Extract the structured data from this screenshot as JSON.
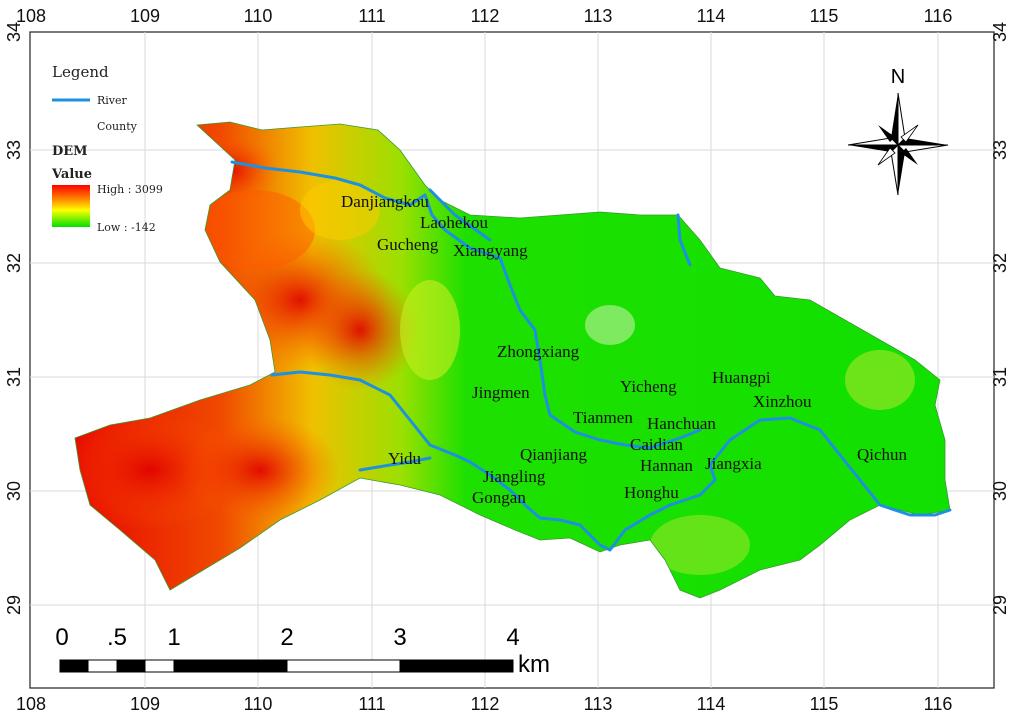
{
  "legend": {
    "title": "Legend",
    "river_label": "River",
    "county_label": "County",
    "dem_title": "DEM",
    "value_title": "Value",
    "high_label": "High : 3099",
    "low_label": "Low : -142",
    "river_color": "#1e90e0"
  },
  "north_arrow": {
    "label": "N"
  },
  "axes": {
    "longitude_ticks": [
      "108",
      "109",
      "110",
      "111",
      "112",
      "113",
      "114",
      "115",
      "116"
    ],
    "latitude_ticks": [
      "34",
      "33",
      "32",
      "31",
      "30",
      "29"
    ]
  },
  "scale_bar": {
    "labels": [
      "0",
      ".5",
      "1",
      "2",
      "3",
      "4"
    ],
    "unit": "km"
  },
  "cities": [
    {
      "name": "Danjiangkou"
    },
    {
      "name": "Laohekou"
    },
    {
      "name": "Gucheng"
    },
    {
      "name": "Xiangyang"
    },
    {
      "name": "Zhongxiang"
    },
    {
      "name": "Jingmen"
    },
    {
      "name": "Yicheng"
    },
    {
      "name": "Huangpi"
    },
    {
      "name": "Xinzhou"
    },
    {
      "name": "Tianmen"
    },
    {
      "name": "Hanchuan"
    },
    {
      "name": "Caidian"
    },
    {
      "name": "Yidu"
    },
    {
      "name": "Qianjiang"
    },
    {
      "name": "Jiangling"
    },
    {
      "name": "Hannan"
    },
    {
      "name": "Jiangxia"
    },
    {
      "name": "Qichun"
    },
    {
      "name": "Gongan"
    },
    {
      "name": "Honghu"
    }
  ]
}
